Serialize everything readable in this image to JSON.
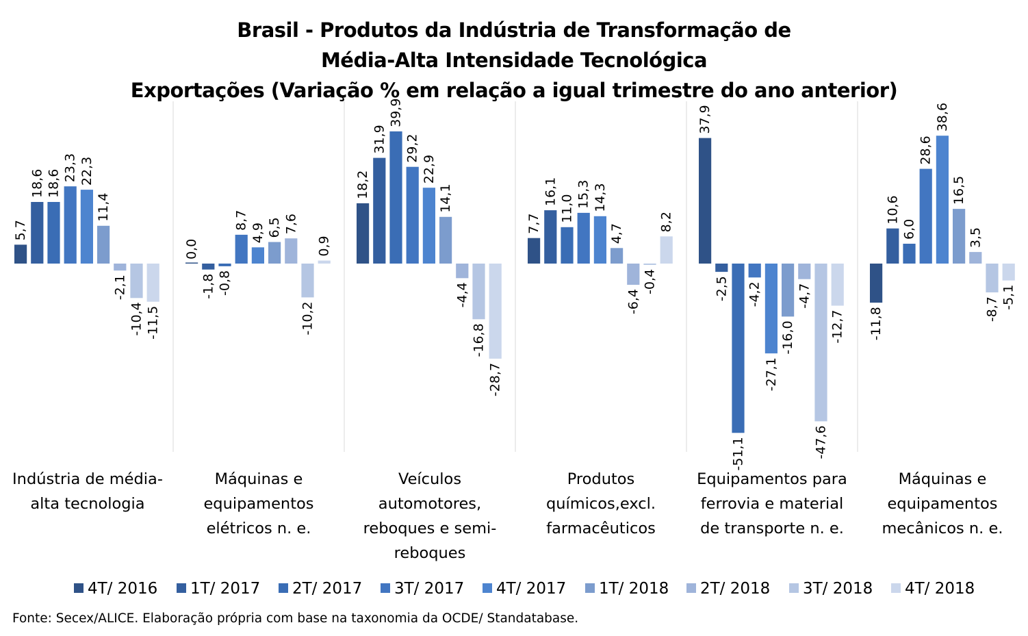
{
  "title": {
    "line1": "Brasil - Produtos da Indústria de Transformação de",
    "line2": "Média-Alta Intensidade Tecnológica",
    "line3": "Exportações (Variação % em relação a igual trimestre do ano anterior)"
  },
  "source": "Fonte: Secex/ALICE. Elaboração própria com base na taxonomia da OCDE/ Standatabase.",
  "categories": [
    {
      "line1": "Indústria de média-",
      "line2": "alta tecnologia",
      "line3": "",
      "line4": ""
    },
    {
      "line1": "Máquinas e",
      "line2": "equipamentos",
      "line3": "elétricos n. e.",
      "line4": ""
    },
    {
      "line1": "Veículos",
      "line2": "automotores,",
      "line3": "reboques e semi-",
      "line4": "reboques"
    },
    {
      "line1": "Produtos",
      "line2": "químicos,excl.",
      "line3": "farmacêuticos",
      "line4": ""
    },
    {
      "line1": "Equipamentos para",
      "line2": "ferrovia e material",
      "line3": "de transporte n. e.",
      "line4": ""
    },
    {
      "line1": "Máquinas e",
      "line2": "equipamentos",
      "line3": "mecânicos  n. e.",
      "line4": ""
    }
  ],
  "legend": [
    {
      "label": "4T/ 2016",
      "color": "#2f5287"
    },
    {
      "label": "1T/ 2017",
      "color": "#345f9f"
    },
    {
      "label": "2T/ 2017",
      "color": "#3a6db5"
    },
    {
      "label": "3T/ 2017",
      "color": "#4276c1"
    },
    {
      "label": "4T/ 2017",
      "color": "#4d84cf"
    },
    {
      "label": "1T/ 2018",
      "color": "#7c9ccd"
    },
    {
      "label": "2T/ 2018",
      "color": "#9fb4da"
    },
    {
      "label": "3T/ 2018",
      "color": "#b5c6e3"
    },
    {
      "label": "4T/ 2018",
      "color": "#cbd7ec"
    }
  ],
  "chart_data": {
    "type": "bar",
    "title": "Brasil - Produtos da Indústria de Transformação de Média-Alta Intensidade Tecnológica Exportações (Variação % em relação a igual trimestre do ano anterior)",
    "categories": [
      "Indústria de média-alta tecnologia",
      "Máquinas e equipamentos elétricos n. e.",
      "Veículos automotores, reboques e semi-reboques",
      "Produtos químicos,excl. farmacêuticos",
      "Equipamentos para ferrovia e material de transporte n. e.",
      "Máquinas e equipamentos mecânicos  n. e."
    ],
    "series": [
      {
        "name": "4T/ 2016",
        "values": [
          5.7,
          0.0,
          18.2,
          7.7,
          37.9,
          -11.8
        ]
      },
      {
        "name": "1T/ 2017",
        "values": [
          18.6,
          -1.8,
          31.9,
          16.1,
          -2.5,
          10.6
        ]
      },
      {
        "name": "2T/ 2017",
        "values": [
          18.6,
          -0.8,
          39.9,
          11.0,
          -51.1,
          6.0
        ]
      },
      {
        "name": "3T/ 2017",
        "values": [
          23.3,
          8.7,
          29.2,
          15.3,
          -4.2,
          28.6
        ]
      },
      {
        "name": "4T/ 2017",
        "values": [
          22.3,
          4.9,
          22.9,
          14.3,
          -27.1,
          38.6
        ]
      },
      {
        "name": "1T/ 2018",
        "values": [
          11.4,
          6.5,
          14.1,
          4.7,
          -16.0,
          16.5
        ]
      },
      {
        "name": "2T/ 2018",
        "values": [
          -2.1,
          7.6,
          -4.4,
          -6.4,
          -4.7,
          3.5
        ]
      },
      {
        "name": "3T/ 2018",
        "values": [
          -10.4,
          -10.2,
          -16.8,
          -0.4,
          -47.6,
          -8.7
        ]
      },
      {
        "name": "4T/ 2018",
        "values": [
          -11.5,
          0.9,
          -28.7,
          8.2,
          -12.7,
          -5.1
        ]
      }
    ],
    "labels": [
      [
        "5,7",
        "18,6",
        "18,6",
        "23,3",
        "22,3",
        "11,4",
        "-2,1",
        "-10,4",
        "-11,5"
      ],
      [
        "0,0",
        "-1,8",
        "-0,8",
        "8,7",
        "4,9",
        "6,5",
        "7,6",
        "-10,2",
        "0,9"
      ],
      [
        "18,2",
        "31,9",
        "39,9",
        "29,2",
        "22,9",
        "14,1",
        "-4,4",
        "-16,8",
        "-28,7"
      ],
      [
        "7,7",
        "16,1",
        "11,0",
        "15,3",
        "14,3",
        "4,7",
        "-6,4",
        "-0,4",
        "8,2"
      ],
      [
        "37,9",
        "-2,5",
        "-51,1",
        "-4,2",
        "-27,1",
        "-16,0",
        "-4,7",
        "-47,6",
        "-12,7"
      ],
      [
        "-11,8",
        "10,6",
        "6,0",
        "28,6",
        "38,6",
        "16,5",
        "3,5",
        "-8,7",
        "-5,1"
      ]
    ],
    "ylim": [
      -56,
      48
    ],
    "grid": false,
    "legend_position": "bottom"
  }
}
